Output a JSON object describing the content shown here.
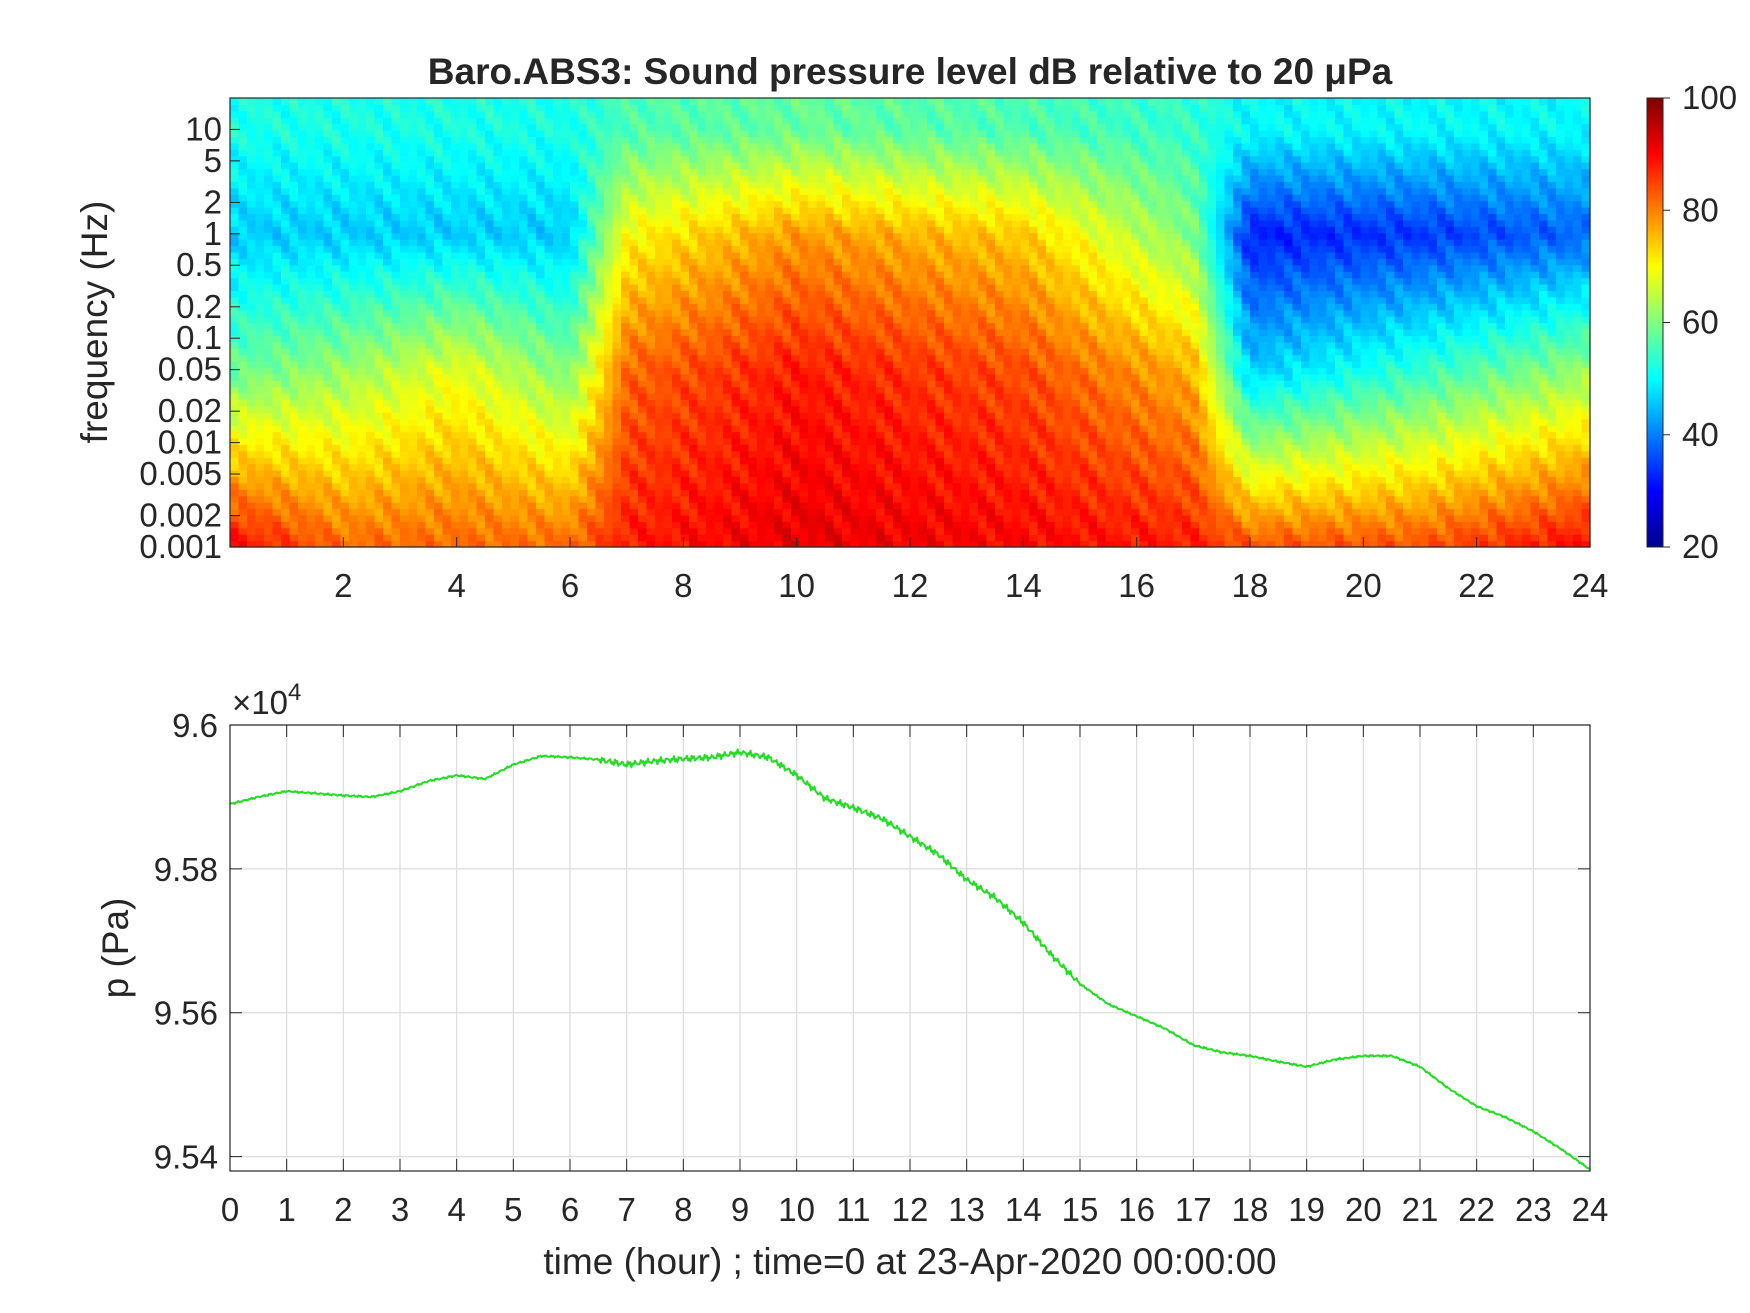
{
  "chart_data": [
    {
      "type": "heatmap",
      "title": "Baro.ABS3: Sound pressure level dB relative to 20 μPa",
      "xlabel": "",
      "ylabel": "frequency (Hz)",
      "xlim": [
        0,
        24
      ],
      "ylim": [
        0.001,
        20
      ],
      "yscale": "log",
      "x_ticks": [
        2,
        4,
        6,
        8,
        10,
        12,
        14,
        16,
        18,
        20,
        22,
        24
      ],
      "y_ticks": [
        {
          "value": 0.001,
          "label": "0.001"
        },
        {
          "value": 0.002,
          "label": "0.002"
        },
        {
          "value": 0.005,
          "label": "0.005"
        },
        {
          "value": 0.01,
          "label": "0.01"
        },
        {
          "value": 0.02,
          "label": "0.02"
        },
        {
          "value": 0.05,
          "label": "0.05"
        },
        {
          "value": 0.1,
          "label": "0.1"
        },
        {
          "value": 0.2,
          "label": "0.2"
        },
        {
          "value": 0.5,
          "label": "0.5"
        },
        {
          "value": 1,
          "label": "1"
        },
        {
          "value": 2,
          "label": "2"
        },
        {
          "value": 5,
          "label": "5"
        },
        {
          "value": 10,
          "label": "10"
        }
      ],
      "colormap": "jet",
      "clim": [
        20,
        100
      ],
      "colorbar_ticks": [
        20,
        40,
        60,
        80,
        100
      ],
      "approx_level_db_by_hour": {
        "hours": [
          0,
          2,
          4,
          6,
          7,
          10,
          14,
          17,
          18,
          21,
          24
        ],
        "low_freq_0.001Hz": [
          90,
          82,
          82,
          82,
          88,
          92,
          90,
          88,
          84,
          84,
          90
        ],
        "mid_freq_0.05Hz": [
          58,
          62,
          68,
          60,
          82,
          88,
          84,
          76,
          46,
          54,
          62
        ],
        "high_freq_1Hz": [
          46,
          46,
          46,
          46,
          70,
          78,
          74,
          60,
          32,
          34,
          38
        ],
        "top_freq_10Hz": [
          52,
          52,
          52,
          52,
          56,
          58,
          56,
          54,
          50,
          50,
          50
        ]
      }
    },
    {
      "type": "line",
      "title": "",
      "xlabel": "time (hour) ; time=0 at 23-Apr-2020 00:00:00",
      "ylabel": "p (Pa)",
      "exponent_label_base": "×10",
      "exponent_label_power": "4",
      "xlim": [
        0,
        24
      ],
      "ylim": [
        95380,
        96000
      ],
      "x_ticks": [
        0,
        1,
        2,
        3,
        4,
        5,
        6,
        7,
        8,
        9,
        10,
        11,
        12,
        13,
        14,
        15,
        16,
        17,
        18,
        19,
        20,
        21,
        22,
        23,
        24
      ],
      "y_ticks": [
        {
          "value": 95400,
          "label": "9.54"
        },
        {
          "value": 95600,
          "label": "9.56"
        },
        {
          "value": 95800,
          "label": "9.58"
        },
        {
          "value": 96000,
          "label": "9.6"
        }
      ],
      "grid": true,
      "line_color": "#22dd22",
      "x": [
        0,
        0.5,
        1,
        1.5,
        2,
        2.5,
        3,
        3.5,
        4,
        4.5,
        5,
        5.5,
        6,
        6.5,
        7,
        7.5,
        8,
        8.5,
        9,
        9.5,
        10,
        10.5,
        11,
        11.5,
        12,
        12.5,
        13,
        13.5,
        14,
        14.5,
        15,
        15.5,
        16,
        16.5,
        17,
        17.5,
        18,
        18.5,
        19,
        19.5,
        20,
        20.5,
        21,
        21.5,
        22,
        22.5,
        23,
        23.5,
        24
      ],
      "y": [
        95890,
        95900,
        95908,
        95905,
        95902,
        95900,
        95908,
        95922,
        95930,
        95925,
        95945,
        95957,
        95955,
        95952,
        95945,
        95950,
        95953,
        95955,
        95962,
        95955,
        95930,
        95898,
        95885,
        95870,
        95845,
        95820,
        95785,
        95760,
        95725,
        95680,
        95640,
        95612,
        95595,
        95578,
        95555,
        95545,
        95540,
        95532,
        95525,
        95535,
        95540,
        95540,
        95525,
        95495,
        95470,
        95455,
        95435,
        95410,
        95382
      ]
    }
  ]
}
